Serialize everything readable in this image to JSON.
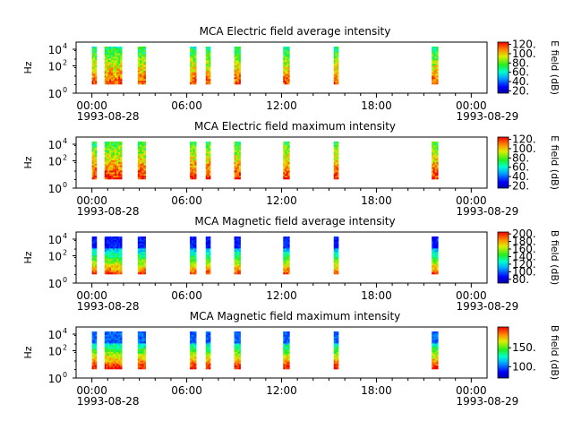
{
  "chart_data": [
    {
      "type": "heatmap",
      "title": "MCA  Electric field average intensity",
      "ylabel": "Hz",
      "yscale": "log",
      "ylim": [
        1,
        30000
      ],
      "y_ticks": [
        "10",
        "10",
        "10"
      ],
      "y_tick_exponents": [
        "0",
        "2",
        "4"
      ],
      "x_tick_labels": [
        "00:00",
        "06:00",
        "12:00",
        "18:00",
        "00:00"
      ],
      "x_tick_dates": [
        "1993-08-28",
        "",
        "",
        "",
        "1993-08-29"
      ],
      "colorbar": {
        "label": "E field (dB)",
        "ticks": [
          "20.",
          "40.",
          "60.",
          "80.",
          "100.",
          "120."
        ],
        "range": [
          15,
          125
        ]
      },
      "data_segments_hours": [
        [
          0.0,
          0.3
        ],
        [
          0.8,
          1.1
        ],
        [
          1.1,
          1.9
        ],
        [
          2.9,
          3.4
        ],
        [
          6.2,
          6.6
        ],
        [
          7.2,
          7.5
        ],
        [
          9.0,
          9.4
        ],
        [
          12.1,
          12.5
        ],
        [
          15.3,
          15.6
        ],
        [
          21.5,
          21.9
        ]
      ]
    },
    {
      "type": "heatmap",
      "title": "MCA  Electric field maximum intensity",
      "ylabel": "Hz",
      "yscale": "log",
      "ylim": [
        1,
        30000
      ],
      "y_ticks": [
        "10",
        "10",
        "10"
      ],
      "y_tick_exponents": [
        "0",
        "2",
        "4"
      ],
      "x_tick_labels": [
        "00:00",
        "06:00",
        "12:00",
        "18:00",
        "00:00"
      ],
      "x_tick_dates": [
        "1993-08-28",
        "",
        "",
        "",
        "1993-08-29"
      ],
      "colorbar": {
        "label": "E field (dB)",
        "ticks": [
          "20.",
          "40.",
          "60.",
          "80.",
          "100.",
          "120."
        ],
        "range": [
          15,
          125
        ]
      },
      "data_segments_hours": [
        [
          0.0,
          0.3
        ],
        [
          0.8,
          1.1
        ],
        [
          1.1,
          1.9
        ],
        [
          2.9,
          3.4
        ],
        [
          6.2,
          6.6
        ],
        [
          7.2,
          7.5
        ],
        [
          9.0,
          9.4
        ],
        [
          12.1,
          12.5
        ],
        [
          15.3,
          15.6
        ],
        [
          21.5,
          21.9
        ]
      ]
    },
    {
      "type": "heatmap",
      "title": "MCA  Magnetic field average intensity",
      "ylabel": "Hz",
      "yscale": "log",
      "ylim": [
        1,
        30000
      ],
      "y_ticks": [
        "10",
        "10",
        "10"
      ],
      "y_tick_exponents": [
        "0",
        "2",
        "4"
      ],
      "x_tick_labels": [
        "00:00",
        "06:00",
        "12:00",
        "18:00",
        "00:00"
      ],
      "x_tick_dates": [
        "1993-08-28",
        "",
        "",
        "",
        "1993-08-29"
      ],
      "colorbar": {
        "label": "B field (dB)",
        "ticks": [
          "80.",
          "100.",
          "120.",
          "140.",
          "160.",
          "180.",
          "200."
        ],
        "range": [
          70,
          205
        ]
      },
      "data_segments_hours": [
        [
          0.0,
          0.3
        ],
        [
          0.8,
          1.1
        ],
        [
          1.1,
          1.9
        ],
        [
          2.9,
          3.4
        ],
        [
          6.2,
          6.6
        ],
        [
          7.2,
          7.5
        ],
        [
          9.0,
          9.4
        ],
        [
          12.1,
          12.5
        ],
        [
          15.3,
          15.6
        ],
        [
          21.5,
          21.9
        ]
      ]
    },
    {
      "type": "heatmap",
      "title": "MCA  Magnetic field maximum intensity",
      "ylabel": "Hz",
      "yscale": "log",
      "ylim": [
        1,
        30000
      ],
      "y_ticks": [
        "10",
        "10",
        "10"
      ],
      "y_tick_exponents": [
        "0",
        "2",
        "4"
      ],
      "x_tick_labels": [
        "00:00",
        "06:00",
        "12:00",
        "18:00",
        "00:00"
      ],
      "x_tick_dates": [
        "1993-08-28",
        "",
        "",
        "",
        "1993-08-29"
      ],
      "colorbar": {
        "label": "B field (dB)",
        "ticks": [
          "100.",
          "150."
        ],
        "range": [
          70,
          205
        ]
      },
      "data_segments_hours": [
        [
          0.0,
          0.3
        ],
        [
          0.8,
          1.1
        ],
        [
          1.1,
          1.9
        ],
        [
          2.9,
          3.4
        ],
        [
          6.2,
          6.6
        ],
        [
          7.2,
          7.5
        ],
        [
          9.0,
          9.4
        ],
        [
          12.1,
          12.5
        ],
        [
          15.3,
          15.6
        ],
        [
          21.5,
          21.9
        ]
      ]
    }
  ]
}
